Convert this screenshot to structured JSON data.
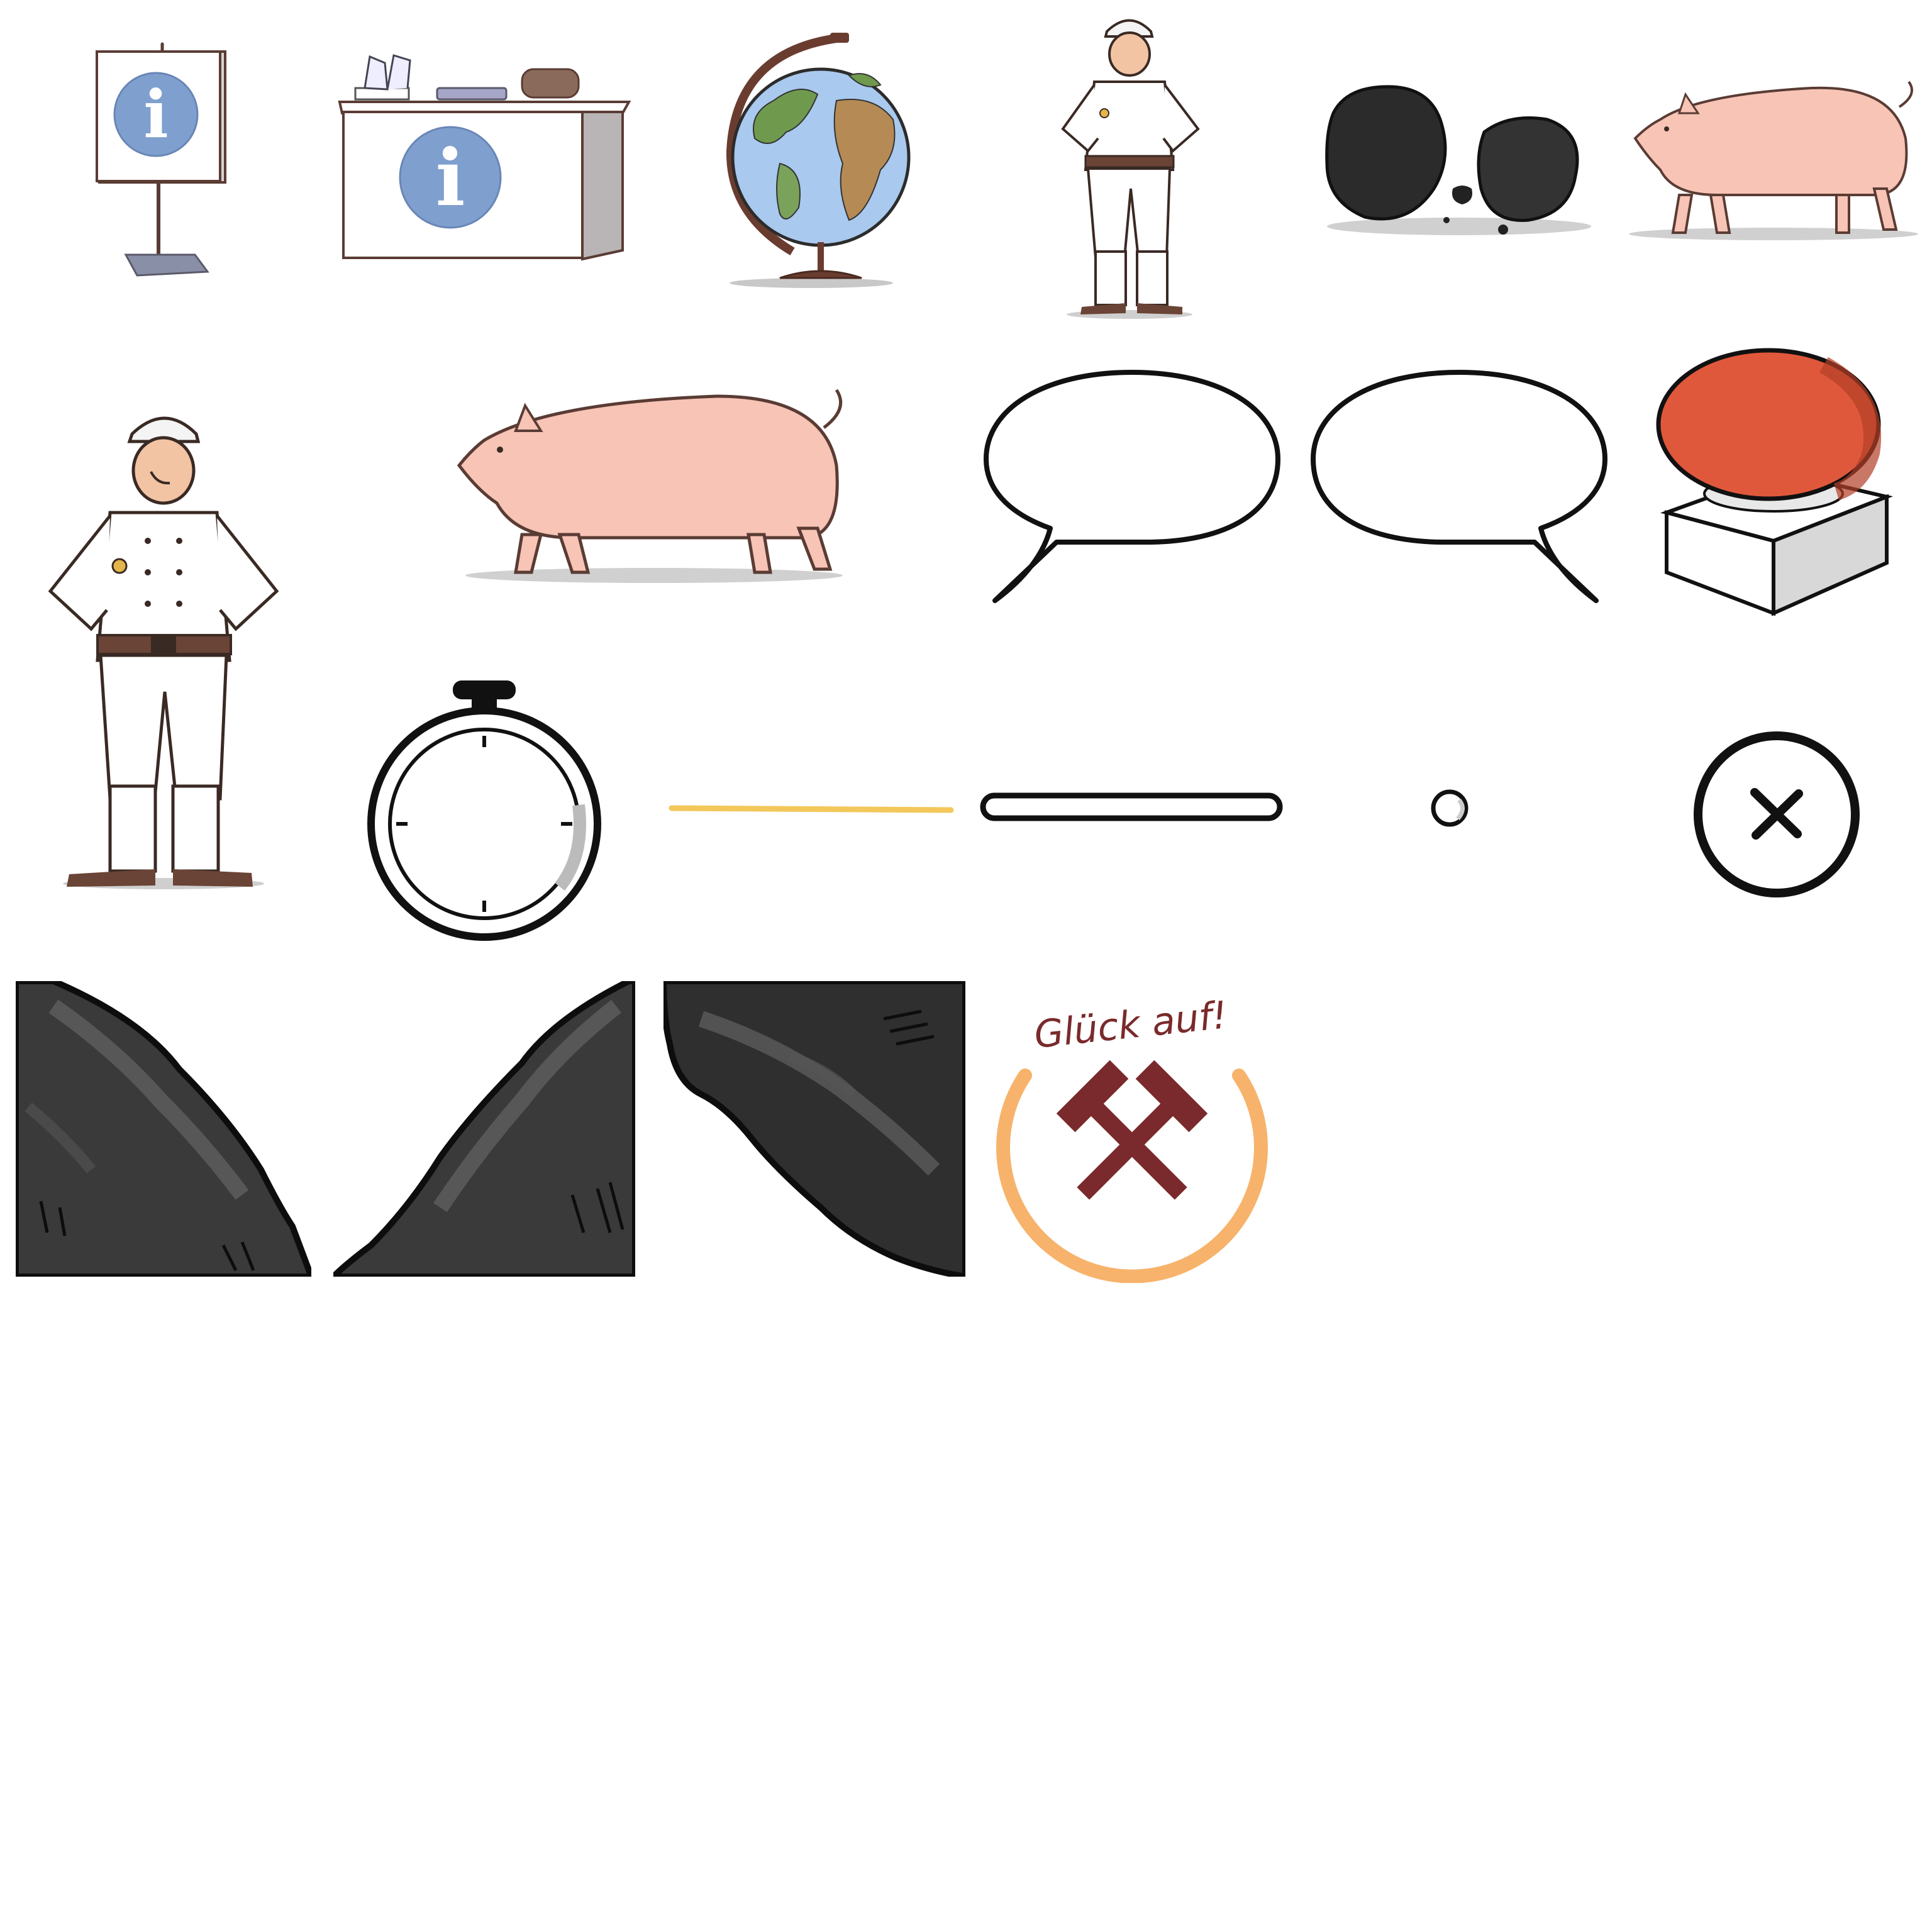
{
  "sheet": {
    "title": "",
    "sprites": [
      "info-sign",
      "info-desk",
      "globe",
      "miner-small",
      "coal-lumps",
      "pig-small",
      "miner-large",
      "pig-large",
      "speech-bubble-left",
      "speech-bubble-right",
      "red-button",
      "stopwatch",
      "yellow-line",
      "pill-track",
      "small-knob",
      "close-button",
      "rock-left",
      "rock-right",
      "rock-overhang",
      "glueck-auf-badge"
    ]
  },
  "icons": {
    "info": "i",
    "close": "×"
  },
  "badge": {
    "text": "Glück auf!",
    "ring_color": "#F7B36B",
    "emblem_color": "#7A2A2C"
  },
  "colors": {
    "info_blue": "#7F9FCE",
    "pig_pink": "#F7C4B6",
    "button_red": "#E0583B",
    "line_yellow": "#F3C75A",
    "coal": "#2B2B2B",
    "rock": "#3A3A3A"
  }
}
